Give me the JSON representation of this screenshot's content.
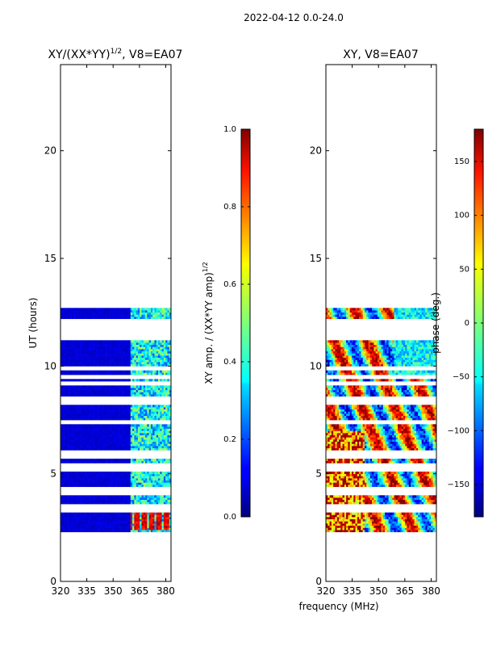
{
  "suptitle": "2022-04-12 0.0-24.0",
  "chart_data": [
    {
      "type": "heatmap",
      "title": "XY/(XX*YY)",
      "title_exponent": "1/2",
      "title_suffix": ", V8=EA07",
      "xlabel": "",
      "ylabel": "UT (hours)",
      "xlim": [
        320,
        383
      ],
      "ylim": [
        0,
        24
      ],
      "xticks": [
        "320",
        "335",
        "350",
        "365",
        "380"
      ],
      "xtick_values": [
        320,
        335,
        350,
        365,
        380
      ],
      "yticks": [
        "0",
        "5",
        "10",
        "15",
        "20"
      ],
      "ytick_values": [
        0,
        5,
        10,
        15,
        20
      ],
      "colorbar": {
        "label": "XY amp. / (XX*YY amp)",
        "label_exponent": "1/2",
        "range": [
          0.0,
          1.0
        ],
        "ticks": [
          "0.0",
          "0.2",
          "0.4",
          "0.6",
          "0.8",
          "1.0"
        ],
        "tick_values": [
          0.0,
          0.2,
          0.4,
          0.6,
          0.8,
          1.0
        ],
        "colormap": "jet"
      },
      "data_extent_hours": [
        1.7,
        12.7
      ],
      "gap_hours": [
        [
          11.2,
          12.2
        ]
      ]
    },
    {
      "type": "heatmap",
      "title": "XY, V8=EA07",
      "xlabel": "frequency (MHz)",
      "ylabel": "",
      "xlim": [
        320,
        383
      ],
      "ylim": [
        0,
        24
      ],
      "xticks": [
        "320",
        "335",
        "350",
        "365",
        "380"
      ],
      "xtick_values": [
        320,
        335,
        350,
        365,
        380
      ],
      "yticks": [
        "0",
        "5",
        "10",
        "15",
        "20"
      ],
      "ytick_values": [
        0,
        5,
        10,
        15,
        20
      ],
      "colorbar": {
        "label": "phase (deg.)",
        "range": [
          -180,
          180
        ],
        "ticks": [
          "−150",
          "−100",
          "−50",
          "0",
          "50",
          "100",
          "150"
        ],
        "tick_values": [
          -150,
          -100,
          -50,
          0,
          50,
          100,
          150
        ],
        "colormap": "jet"
      },
      "data_extent_hours": [
        1.7,
        12.7
      ],
      "gap_hours": [
        [
          11.2,
          12.2
        ]
      ]
    }
  ]
}
